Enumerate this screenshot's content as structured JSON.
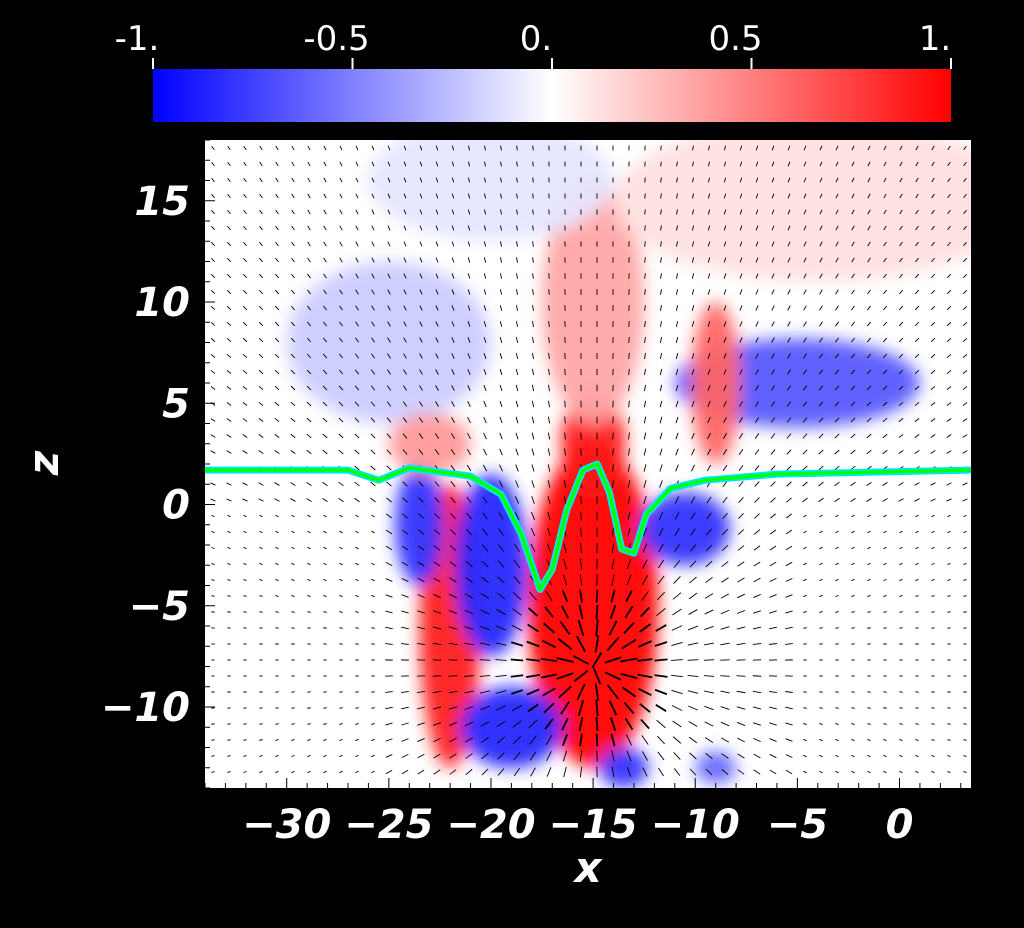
{
  "chart_data": {
    "type": "heatmap",
    "xlabel": "x",
    "ylabel": "z",
    "xlim": [
      -34,
      3.5
    ],
    "ylim": [
      -14,
      18
    ],
    "x_ticks": [
      "−30",
      "−25",
      "−20",
      "−15",
      "−10",
      "−5",
      "0"
    ],
    "y_ticks": [
      "15",
      "10",
      "5",
      "0",
      "−5",
      "−10"
    ],
    "colorbar": {
      "ticks": [
        "-1.",
        "-0.5",
        "0.",
        "0.5",
        "1."
      ],
      "range": [
        -1,
        1
      ],
      "colors": [
        "#0000ff",
        "#ffffff",
        "#ff0000"
      ]
    },
    "contour_colors": [
      "#00ff00",
      "#00e5ff"
    ],
    "contour_line": [
      [
        -34,
        1.7
      ],
      [
        -27,
        1.7
      ],
      [
        -25.5,
        1.2
      ],
      [
        -24,
        1.8
      ],
      [
        -21,
        1.4
      ],
      [
        -19.5,
        0.5
      ],
      [
        -18.5,
        -1.5
      ],
      [
        -17.6,
        -4.2
      ],
      [
        -17,
        -3.2
      ],
      [
        -16.3,
        -0.3
      ],
      [
        -15.5,
        1.7
      ],
      [
        -14.8,
        2.0
      ],
      [
        -14.2,
        0.6
      ],
      [
        -13.6,
        -2.2
      ],
      [
        -13,
        -2.4
      ],
      [
        -12.4,
        -0.5
      ],
      [
        -11.2,
        0.8
      ],
      [
        -9.5,
        1.2
      ],
      [
        -6,
        1.5
      ],
      [
        3.5,
        1.7
      ]
    ],
    "field_blobs": [
      {
        "x": -15,
        "z": -5,
        "rx": 3.2,
        "rz": 8,
        "value": 1.0
      },
      {
        "x": -15,
        "z": 3,
        "rx": 1.6,
        "rz": 2.5,
        "value": 0.9
      },
      {
        "x": -15,
        "z": 10,
        "rx": 2.5,
        "rz": 6,
        "value": 0.35
      },
      {
        "x": -22,
        "z": -6,
        "rx": 1.5,
        "rz": 7,
        "value": 0.9
      },
      {
        "x": -20,
        "z": -3,
        "rx": 1.8,
        "rz": 4.5,
        "value": -0.85
      },
      {
        "x": -23.5,
        "z": -1,
        "rx": 1.2,
        "rz": 3,
        "value": -0.8
      },
      {
        "x": -19,
        "z": -11,
        "rx": 2.5,
        "rz": 2,
        "value": -0.85
      },
      {
        "x": -10.5,
        "z": -1.2,
        "rx": 2.2,
        "rz": 1.8,
        "value": -0.8
      },
      {
        "x": -5,
        "z": 6,
        "rx": 6,
        "rz": 2.2,
        "value": -0.65
      },
      {
        "x": -9,
        "z": 6,
        "rx": 1.2,
        "rz": 4,
        "value": 0.6
      },
      {
        "x": -25,
        "z": 8,
        "rx": 5,
        "rz": 4,
        "value": -0.2
      },
      {
        "x": -23,
        "z": 3,
        "rx": 2,
        "rz": 1.5,
        "value": 0.4
      },
      {
        "x": -13.5,
        "z": -13,
        "rx": 1.2,
        "rz": 1,
        "value": -0.8
      },
      {
        "x": -9,
        "z": -13,
        "rx": 1,
        "rz": 0.8,
        "value": -0.6
      },
      {
        "x": -4,
        "z": 15,
        "rx": 10,
        "rz": 4,
        "value": 0.12
      },
      {
        "x": -20,
        "z": 16,
        "rx": 6,
        "rz": 3,
        "value": -0.1
      }
    ],
    "flow_sinks": [
      {
        "x": -15,
        "z": -8,
        "strength": 1.0
      }
    ]
  }
}
